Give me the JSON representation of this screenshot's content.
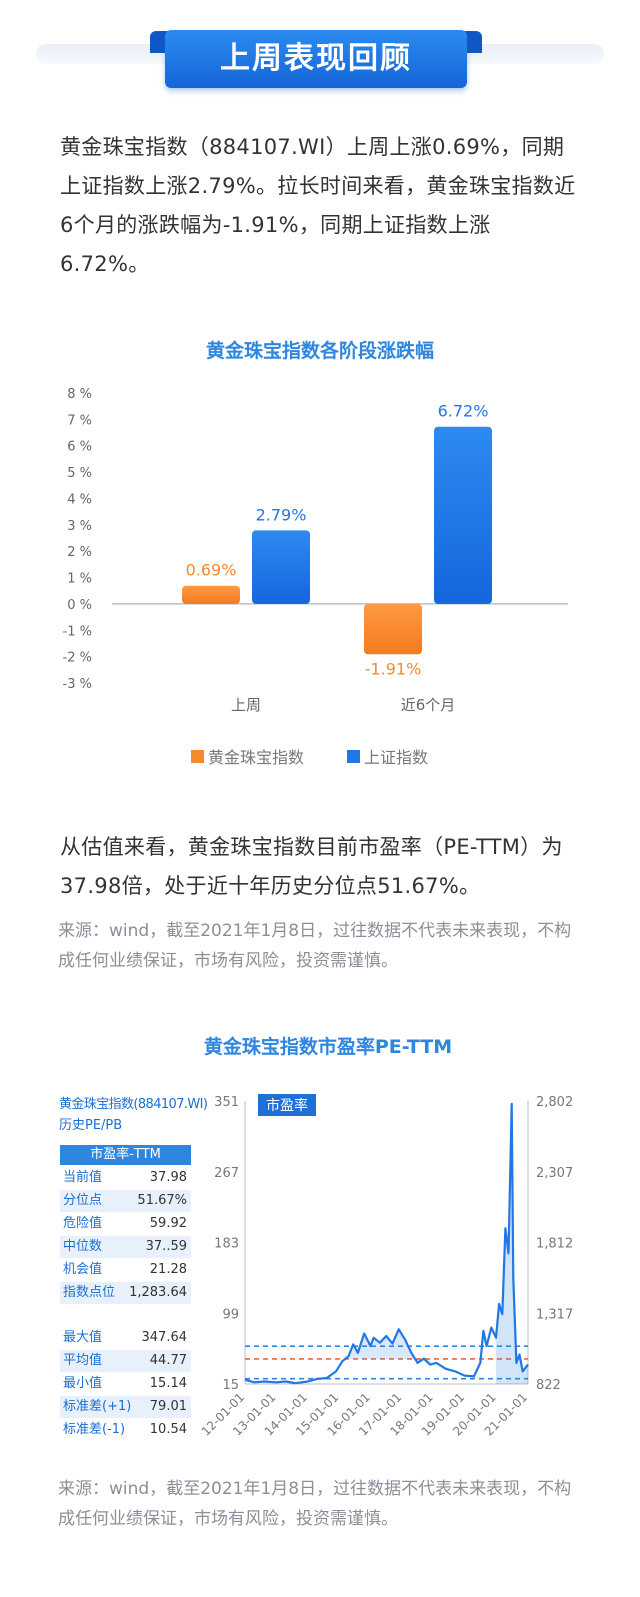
{
  "header": {
    "title": "上周表现回顾"
  },
  "intro_text": "黄金珠宝指数（884107.WI）上周上涨0.69%，同期上证指数上涨2.79%。拉长时间来看，黄金珠宝指数近6个月的涨跌幅为-1.91%，同期上证指数上涨6.72%。",
  "valuation_text": "从估值来看，黄金珠宝指数目前市盈率（PE-TTM）为37.98倍，处于近十年历史分位点51.67%。",
  "source_note_1": "来源：wind，截至2021年1月8日，过往数据不代表未来表现，不构成任何业绩保证，市场有风险，投资需谨慎。",
  "source_note_2": "来源：wind，截至2021年1月8日，过往数据不代表未来表现，不构成任何业绩保证，市场有风险，投资需谨慎。",
  "colors": {
    "accent": "#2e86de",
    "gold_series": "#f58a2c",
    "sse_series": "#2277e6"
  },
  "chart_data": [
    {
      "type": "bar",
      "title": "黄金珠宝指数各阶段涨跌幅",
      "categories": [
        "上周",
        "近6个月"
      ],
      "series": [
        {
          "name": "黄金珠宝指数",
          "values": [
            0.69,
            -1.91
          ],
          "labels": [
            "0.69%",
            "-1.91%"
          ],
          "color": "#f58a2c"
        },
        {
          "name": "上证指数",
          "values": [
            2.79,
            6.72
          ],
          "labels": [
            "2.79%",
            "6.72%"
          ],
          "color": "#2277e6"
        }
      ],
      "ylim": [
        -3,
        8
      ],
      "yticks": [
        "8 %",
        "7 %",
        "6 %",
        "5 %",
        "4 %",
        "3 %",
        "2 %",
        "1 %",
        "0 %",
        "-1 %",
        "-2 %",
        "-3 %"
      ],
      "ytick_values": [
        8,
        7,
        6,
        5,
        4,
        3,
        2,
        1,
        0,
        -1,
        -2,
        -3
      ],
      "legend": "bottom"
    },
    {
      "type": "line",
      "title": "黄金珠宝指数市盈率PE-TTM",
      "panel_label": "市盈率",
      "x_ticks": [
        "12-01-01",
        "13-01-01",
        "14-01-01",
        "15-01-01",
        "16-01-01",
        "17-01-01",
        "18-01-01",
        "19-01-01",
        "20-01-01",
        "21-01-01"
      ],
      "y_left_ticks": [
        "351",
        "267",
        "183",
        "99",
        "15"
      ],
      "y_left_tick_values": [
        351,
        267,
        183,
        99,
        15
      ],
      "y_right_ticks": [
        "2,802",
        "2,307",
        "1,812",
        "1,317",
        "822"
      ],
      "ylim": [
        15,
        351
      ],
      "x": [
        2012.0,
        2012.3,
        2012.6,
        2013.0,
        2013.3,
        2013.6,
        2014.0,
        2014.3,
        2014.6,
        2014.9,
        2015.1,
        2015.3,
        2015.45,
        2015.6,
        2015.8,
        2016.0,
        2016.1,
        2016.3,
        2016.5,
        2016.7,
        2016.9,
        2017.1,
        2017.3,
        2017.5,
        2017.7,
        2017.9,
        2018.1,
        2018.4,
        2018.7,
        2019.0,
        2019.3,
        2019.5,
        2019.6,
        2019.7,
        2019.85,
        2020.0,
        2020.1,
        2020.2,
        2020.3,
        2020.4,
        2020.5,
        2020.55,
        2020.65,
        2020.75,
        2020.85,
        2021.02
      ],
      "pe": [
        20,
        17,
        18,
        17,
        18,
        16,
        18,
        21,
        22,
        30,
        42,
        48,
        62,
        52,
        75,
        60,
        70,
        64,
        72,
        63,
        80,
        68,
        52,
        40,
        45,
        38,
        40,
        33,
        30,
        25,
        24,
        40,
        78,
        60,
        82,
        70,
        110,
        98,
        200,
        170,
        347.64,
        140,
        40,
        50,
        30,
        38
      ],
      "reference_lines": [
        {
          "name": "危险值",
          "value": 59.92,
          "color": "#2e86de"
        },
        {
          "name": "平均值",
          "value": 44.77,
          "color": "#e9693a"
        },
        {
          "name": "机会值",
          "value": 21.28,
          "color": "#2e86de"
        }
      ]
    }
  ],
  "pe_table": {
    "title_line1": "黄金珠宝指数(884107.WI)",
    "title_line2": "历史PE/PB",
    "header": "市盈率-TTM",
    "rows": [
      {
        "label": "当前值",
        "value": "37.98"
      },
      {
        "label": "分位点",
        "value": "51.67%"
      },
      {
        "label": "危险值",
        "value": "59.92"
      },
      {
        "label": "中位数",
        "value": "37..59"
      },
      {
        "label": "机会值",
        "value": "21.28"
      },
      {
        "label": "指数点位",
        "value": "1,283.64"
      }
    ],
    "rows2": [
      {
        "label": "最大值",
        "value": "347.64"
      },
      {
        "label": "平均值",
        "value": "44.77"
      },
      {
        "label": "最小值",
        "value": "15.14"
      },
      {
        "label": "标准差(+1)",
        "value": "79.01"
      },
      {
        "label": "标准差(-1)",
        "value": "10.54"
      }
    ]
  }
}
